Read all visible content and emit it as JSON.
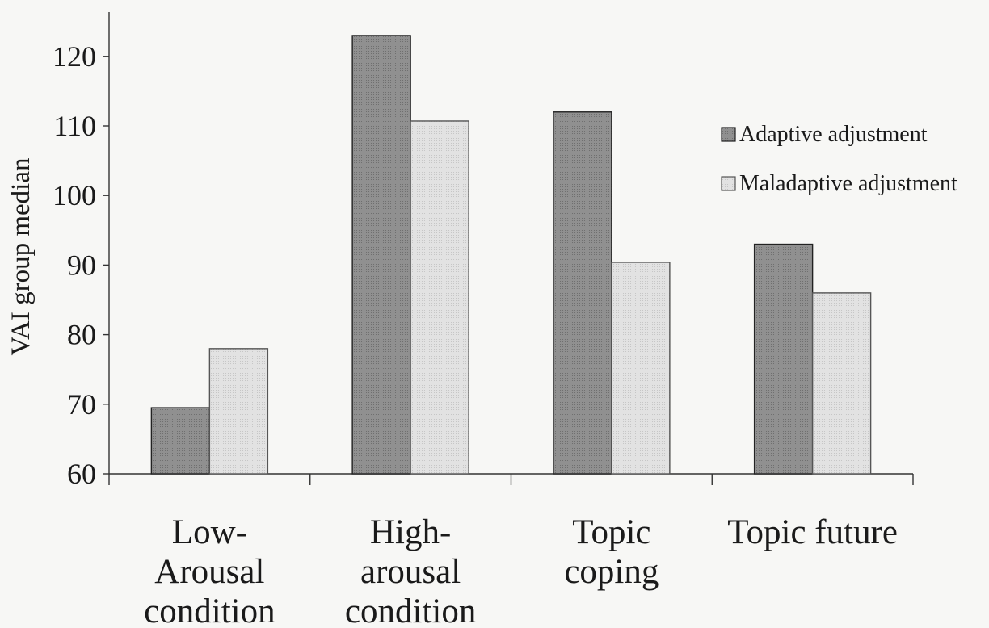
{
  "chart_data": {
    "type": "bar",
    "title": "",
    "ylabel": "VAI group median",
    "xlabel": "",
    "ylim": [
      60,
      125
    ],
    "yticks": [
      "60",
      "70",
      "80",
      "90",
      "100",
      "110",
      "120"
    ],
    "categories": [
      [
        "Low-",
        "Arousal",
        "condition"
      ],
      [
        "High-",
        "arousal",
        "condition"
      ],
      [
        "Topic",
        "coping"
      ],
      [
        "Topic future"
      ]
    ],
    "series": [
      {
        "name": "Adaptive adjustment",
        "color": "#8c8c8c",
        "values": [
          69.5,
          123,
          112,
          93
        ]
      },
      {
        "name": "Maladaptive adjustment",
        "color": "#dedede",
        "values": [
          78,
          110.7,
          90.4,
          86
        ]
      }
    ],
    "legend_position": "top-right",
    "grid": false
  }
}
